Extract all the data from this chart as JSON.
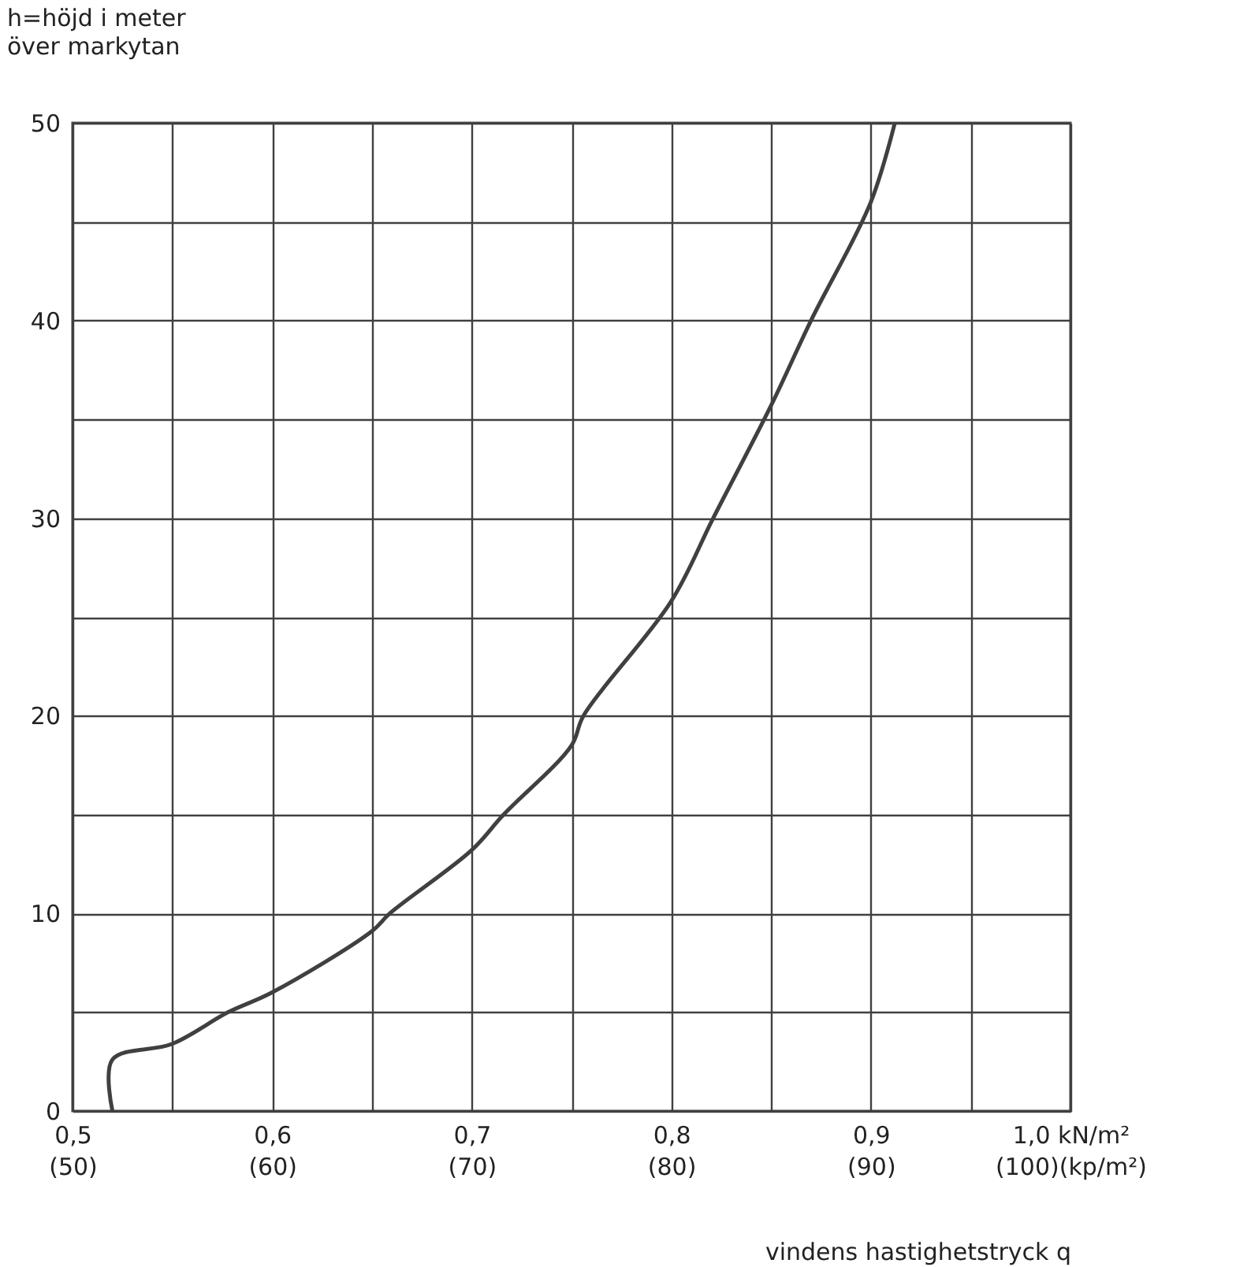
{
  "chart_data": {
    "type": "line",
    "xlabel": "vindens hastighetstryck q",
    "ylabel": "h=höjd i meter\növer markytan",
    "x": [
      0.52,
      0.52,
      0.55,
      0.578,
      0.6,
      0.65,
      0.659,
      0.7,
      0.716,
      0.75,
      0.756,
      0.8,
      0.821,
      0.85,
      0.87,
      0.9,
      0.912
    ],
    "series": [
      {
        "color": "#404040",
        "values": [
          0,
          2.6,
          3.4,
          5,
          6.0,
          9.1,
          10,
          13.2,
          15,
          18.5,
          20,
          25.8,
          30,
          35.7,
          40,
          46.0,
          50
        ]
      }
    ],
    "xlim": [
      0.5,
      1.0
    ],
    "xticks": [
      {
        "value": 0.5,
        "label": "0,5"
      },
      {
        "value": 0.55,
        "label": null
      },
      {
        "value": 0.6,
        "label": "0,6"
      },
      {
        "value": 0.65,
        "label": null
      },
      {
        "value": 0.7,
        "label": "0,7"
      },
      {
        "value": 0.75,
        "label": null
      },
      {
        "value": 0.8,
        "label": "0,8"
      },
      {
        "value": 0.85,
        "label": null
      },
      {
        "value": 0.9,
        "label": "0,9"
      },
      {
        "value": 0.95,
        "label": null
      },
      {
        "value": 1.0,
        "label": "1,0 kN/m²"
      }
    ],
    "x2lim": [
      50,
      100
    ],
    "x2ticks": [
      {
        "value": 50,
        "label": "(50)"
      },
      {
        "value": 60,
        "label": "(60)"
      },
      {
        "value": 70,
        "label": "(70)"
      },
      {
        "value": 80,
        "label": "(80)"
      },
      {
        "value": 90,
        "label": "(90)"
      },
      {
        "value": 100,
        "label": "(100)(kp/m²)"
      }
    ],
    "ylim": [
      0,
      50
    ],
    "yticks": [
      0,
      {
        "value": 5,
        "label": null
      },
      10,
      {
        "value": 15,
        "label": null
      },
      20,
      {
        "value": 25,
        "label": null
      },
      30,
      {
        "value": 35,
        "label": null
      },
      40,
      {
        "value": 45,
        "label": null
      },
      50
    ],
    "grid": true
  }
}
